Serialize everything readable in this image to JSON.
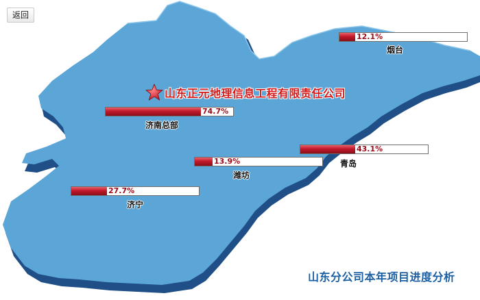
{
  "nav": {
    "back_label": "返回"
  },
  "company": {
    "name": "山东正元地理信息工程有限责任公司"
  },
  "title": "山东分公司本年项目进度分析",
  "colors": {
    "map": "#5ba6d6",
    "map_shadow": "#1f4f86",
    "bar_fill": "#c2192a",
    "percent_text": "#9b0a18"
  },
  "icons": {
    "company_marker": "star-icon"
  },
  "branches": [
    {
      "city": "烟台",
      "percent_label": "12.1%",
      "value": 0.121
    },
    {
      "city": "济南总部",
      "percent_label": "74.7%",
      "value": 0.747
    },
    {
      "city": "青岛",
      "percent_label": "43.1%",
      "value": 0.431
    },
    {
      "city": "潍坊",
      "percent_label": "13.9%",
      "value": 0.139
    },
    {
      "city": "济宁",
      "percent_label": "27.7%",
      "value": 0.277
    }
  ]
}
